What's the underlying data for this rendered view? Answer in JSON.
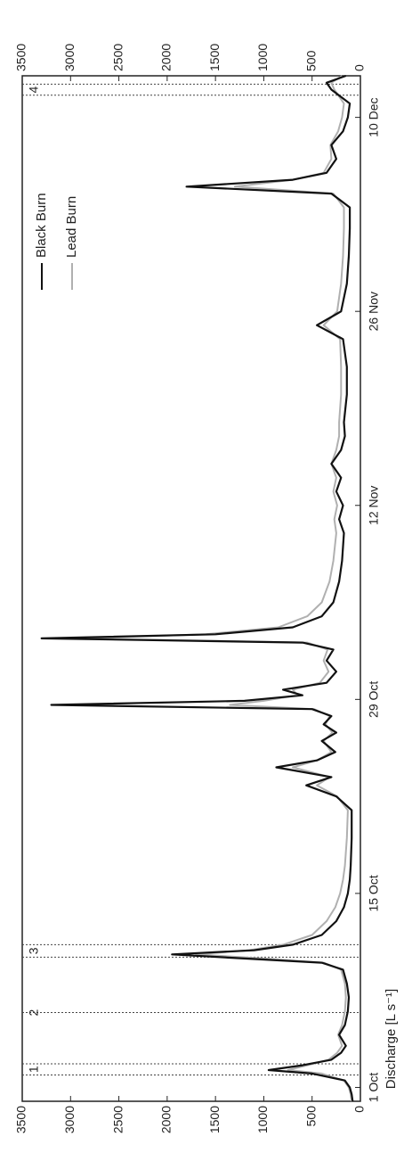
{
  "chart_data": {
    "type": "line",
    "ylabel": "Discharge [L s⁻¹]",
    "x": [
      -1,
      -0.5,
      0,
      0.5,
      1,
      1.25,
      1.6,
      2,
      2.5,
      3,
      3.8,
      4.5,
      5.5,
      6.5,
      7.5,
      8.5,
      9,
      9.3,
      9.6,
      9.9,
      10.3,
      11,
      12,
      13,
      14,
      15,
      16,
      18,
      20,
      21,
      21.8,
      22.4,
      23.1,
      23.6,
      24.2,
      25,
      25.6,
      26.2,
      26.8,
      27.3,
      27.6,
      27.9,
      28.3,
      28.7,
      29.2,
      30,
      30.8,
      31.6,
      32.1,
      32.4,
      32.7,
      33.2,
      34,
      35,
      36.5,
      38,
      40,
      41,
      42,
      43,
      44,
      45,
      46,
      47,
      48,
      50,
      52,
      54,
      55,
      56,
      58,
      60,
      62,
      63.5,
      64.5,
      65,
      65.5,
      66,
      67,
      68,
      69,
      70,
      71,
      72,
      72.5,
      73
    ],
    "series": [
      {
        "name": "Black Burn",
        "color": "#111111",
        "values": [
          80,
          90,
          110,
          160,
          500,
          950,
          600,
          300,
          200,
          150,
          220,
          160,
          130,
          120,
          140,
          180,
          400,
          1200,
          1950,
          1100,
          700,
          400,
          250,
          170,
          130,
          110,
          100,
          90,
          90,
          250,
          560,
          300,
          870,
          450,
          260,
          400,
          250,
          380,
          300,
          500,
          3200,
          1200,
          600,
          800,
          350,
          250,
          350,
          280,
          600,
          3300,
          1500,
          700,
          400,
          280,
          220,
          190,
          170,
          220,
          180,
          250,
          200,
          300,
          200,
          160,
          170,
          140,
          140,
          180,
          450,
          200,
          140,
          120,
          110,
          110,
          300,
          1800,
          700,
          350,
          250,
          300,
          180,
          130,
          110,
          300,
          350,
          150
        ]
      },
      {
        "name": "Lead Burn",
        "color": "#b0b0b0",
        "values": [
          90,
          100,
          120,
          170,
          400,
          750,
          550,
          330,
          240,
          190,
          230,
          190,
          160,
          150,
          160,
          200,
          380,
          1000,
          1700,
          1150,
          800,
          500,
          350,
          260,
          210,
          180,
          160,
          140,
          130,
          240,
          450,
          320,
          700,
          450,
          300,
          380,
          290,
          360,
          320,
          480,
          1350,
          1000,
          650,
          700,
          420,
          330,
          380,
          340,
          550,
          2900,
          1600,
          850,
          550,
          400,
          320,
          280,
          250,
          270,
          240,
          280,
          250,
          300,
          250,
          220,
          220,
          200,
          200,
          210,
          380,
          240,
          200,
          180,
          170,
          170,
          280,
          1300,
          700,
          380,
          300,
          310,
          230,
          190,
          170,
          270,
          300,
          190
        ]
      }
    ],
    "events": [
      {
        "label": "1",
        "x": [
          0.9,
          1.7
        ]
      },
      {
        "label": "2",
        "x": [
          5.4
        ]
      },
      {
        "label": "3",
        "x": [
          9.4,
          10.3
        ]
      },
      {
        "label": "4",
        "x": [
          71.6,
          72.4
        ]
      }
    ],
    "xlim": [
      -1,
      73
    ],
    "xticks": [
      {
        "value": 0,
        "label": "1 Oct"
      },
      {
        "value": 14,
        "label": "15 Oct"
      },
      {
        "value": 28,
        "label": "29 Oct"
      },
      {
        "value": 42,
        "label": "12 Nov"
      },
      {
        "value": 56,
        "label": "26 Nov"
      },
      {
        "value": 70,
        "label": "10 Dec"
      }
    ],
    "ylim": [
      0,
      3500
    ],
    "yticks": [
      0,
      500,
      1000,
      1500,
      2000,
      2500,
      3000,
      3500
    ],
    "legend": "upper right"
  }
}
